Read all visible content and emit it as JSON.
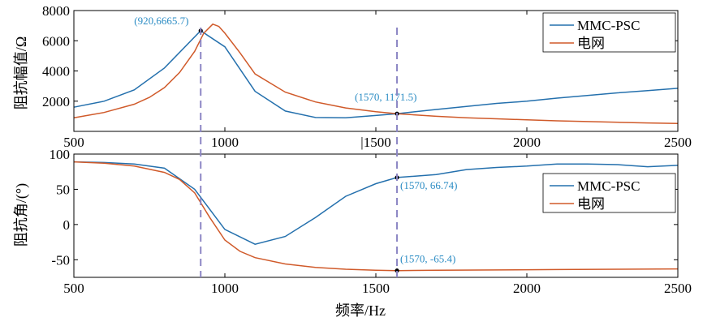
{
  "chart_data": [
    {
      "type": "line",
      "ylabel": "阻抗幅值/Ω",
      "xlabel": "",
      "xlim": [
        500,
        2500
      ],
      "ylim": [
        0,
        8000
      ],
      "xticks": [
        500,
        1000,
        1500,
        2000,
        2500
      ],
      "xtick_labels": [
        "500",
        "1000",
        "|1500",
        "2000",
        "2500"
      ],
      "yticks": [
        2000,
        4000,
        6000,
        8000
      ],
      "ytick_labels": [
        "2000",
        "4000",
        "6000",
        "8000"
      ],
      "legend": {
        "position": "top-right",
        "entries": [
          "MMC-PSC",
          "电网"
        ]
      },
      "series": [
        {
          "name": "MMC-PSC",
          "color": "#2470ad",
          "x": [
            500,
            600,
            700,
            800,
            920,
            1000,
            1100,
            1200,
            1300,
            1400,
            1500,
            1570,
            1700,
            1800,
            1900,
            2000,
            2100,
            2200,
            2300,
            2400,
            2500
          ],
          "y": [
            1600,
            2000,
            2750,
            4200,
            6665.7,
            5600,
            2650,
            1350,
            920,
            900,
            1050,
            1171.5,
            1450,
            1650,
            1850,
            2000,
            2200,
            2380,
            2550,
            2700,
            2850
          ]
        },
        {
          "name": "电网",
          "color": "#d05a2a",
          "x": [
            500,
            600,
            700,
            750,
            800,
            850,
            900,
            930,
            960,
            980,
            1000,
            1050,
            1100,
            1200,
            1300,
            1400,
            1500,
            1570,
            1700,
            1800,
            1900,
            2000,
            2100,
            2200,
            2300,
            2400,
            2500
          ],
          "y": [
            900,
            1250,
            1800,
            2250,
            2900,
            3900,
            5300,
            6500,
            7100,
            6950,
            6500,
            5200,
            3800,
            2600,
            1950,
            1550,
            1300,
            1171.5,
            1000,
            900,
            830,
            760,
            700,
            650,
            600,
            560,
            520
          ]
        }
      ],
      "annotations": [
        {
          "x": 920,
          "y": 6665.7,
          "label": "(920,6665.7)"
        },
        {
          "x": 1570,
          "y": 1171.5,
          "label": "(1570, 1171.5)"
        }
      ]
    },
    {
      "type": "line",
      "ylabel": "阻抗角/(°)",
      "xlabel": "频率/Hz",
      "xlim": [
        500,
        2500
      ],
      "ylim": [
        -75,
        100
      ],
      "xticks": [
        500,
        1000,
        1500,
        2000,
        2500
      ],
      "xtick_labels": [
        "500",
        "1000",
        "1500",
        "2000",
        "2500"
      ],
      "yticks": [
        -50,
        0,
        50,
        100
      ],
      "ytick_labels": [
        "-50",
        "0",
        "50",
        "100"
      ],
      "legend": {
        "position": "right",
        "entries": [
          "MMC-PSC",
          "电网"
        ]
      },
      "series": [
        {
          "name": "MMC-PSC",
          "color": "#2470ad",
          "x": [
            500,
            600,
            700,
            800,
            900,
            1000,
            1100,
            1200,
            1300,
            1400,
            1500,
            1570,
            1700,
            1800,
            1900,
            2000,
            2100,
            2200,
            2300,
            2400,
            2500
          ],
          "y": [
            89,
            88,
            86,
            80,
            50,
            -7,
            -28,
            -17,
            10,
            40,
            58,
            66.74,
            71,
            78,
            81,
            83,
            86,
            86,
            85,
            82,
            84
          ]
        },
        {
          "name": "电网",
          "color": "#d05a2a",
          "x": [
            500,
            600,
            700,
            800,
            850,
            900,
            950,
            1000,
            1050,
            1100,
            1200,
            1300,
            1400,
            1500,
            1570,
            1700,
            1900,
            2100,
            2300,
            2500
          ],
          "y": [
            89,
            87,
            83,
            74,
            64,
            45,
            10,
            -22,
            -38,
            -47,
            -56,
            -61,
            -63.5,
            -65,
            -65.4,
            -65,
            -64.5,
            -64,
            -63.5,
            -63
          ]
        }
      ],
      "annotations": [
        {
          "x": 1570,
          "y": 66.74,
          "label": "(1570, 66.74)"
        },
        {
          "x": 1570,
          "y": -65.4,
          "label": "(1570, -65.4)"
        }
      ]
    }
  ]
}
